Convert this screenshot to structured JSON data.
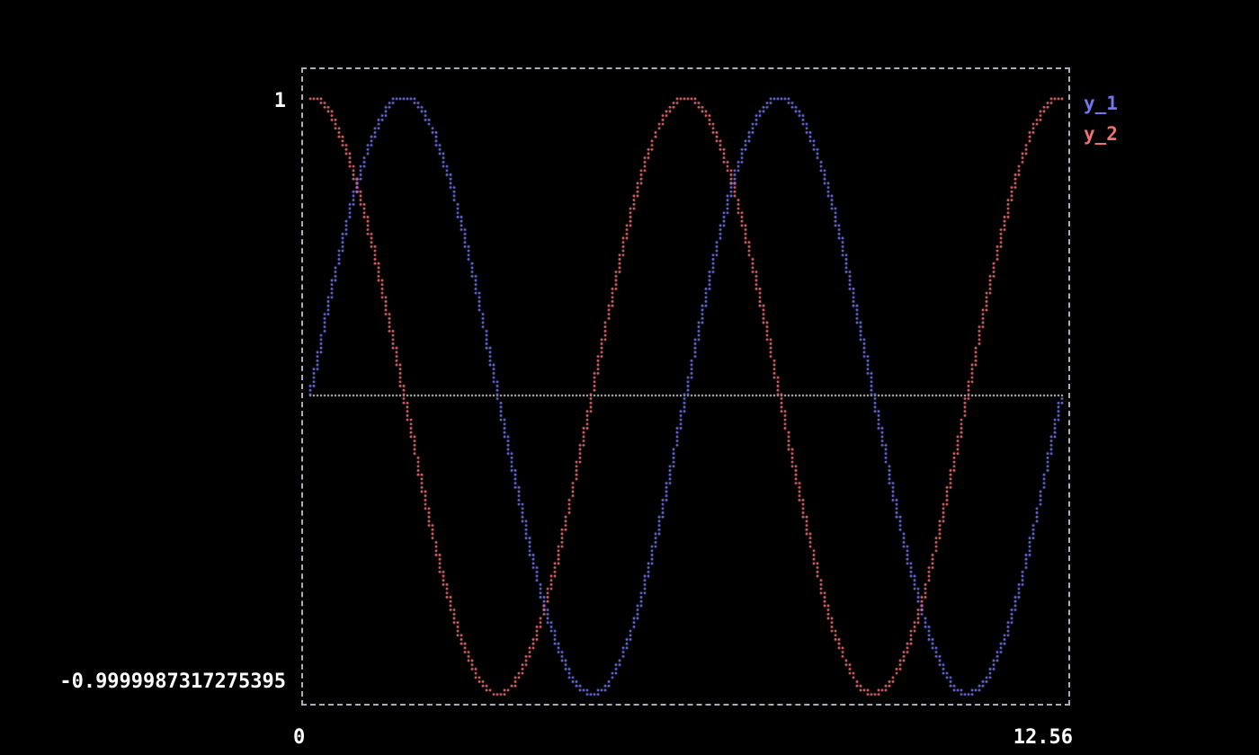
{
  "figure": {
    "background": "#000000",
    "border_color": "#a9b0bc",
    "axes": {
      "y_max": "1",
      "y_min": "-0.9999987317275395",
      "x_min": "0",
      "x_max": "12.56"
    }
  },
  "legend": {
    "items": [
      {
        "label": "y_1",
        "color": "#7277ee"
      },
      {
        "label": "y_2",
        "color": "#ee7272"
      }
    ]
  },
  "chart_data": {
    "type": "scatter",
    "title": "",
    "xlabel": "",
    "ylabel": "",
    "x_range": [
      0,
      12.56
    ],
    "y_range": [
      -0.9999987317275395,
      1
    ],
    "x_tick_labels": [
      "0",
      "12.56"
    ],
    "y_tick_labels": [
      "1",
      "-0.9999987317275395"
    ],
    "marker": "dot",
    "grid": false,
    "legend_position": "right-top",
    "series": [
      {
        "name": "y_1",
        "expression": "sin(x)",
        "fn": "sin",
        "color": "#7277ee"
      },
      {
        "name": "y_2",
        "expression": "cos(x)",
        "fn": "cos",
        "color": "#ee7272"
      }
    ],
    "overlap_color": "#cf6ad6",
    "zero_line": {
      "y": 0,
      "color": "#ffffff",
      "style": "dotted"
    }
  }
}
